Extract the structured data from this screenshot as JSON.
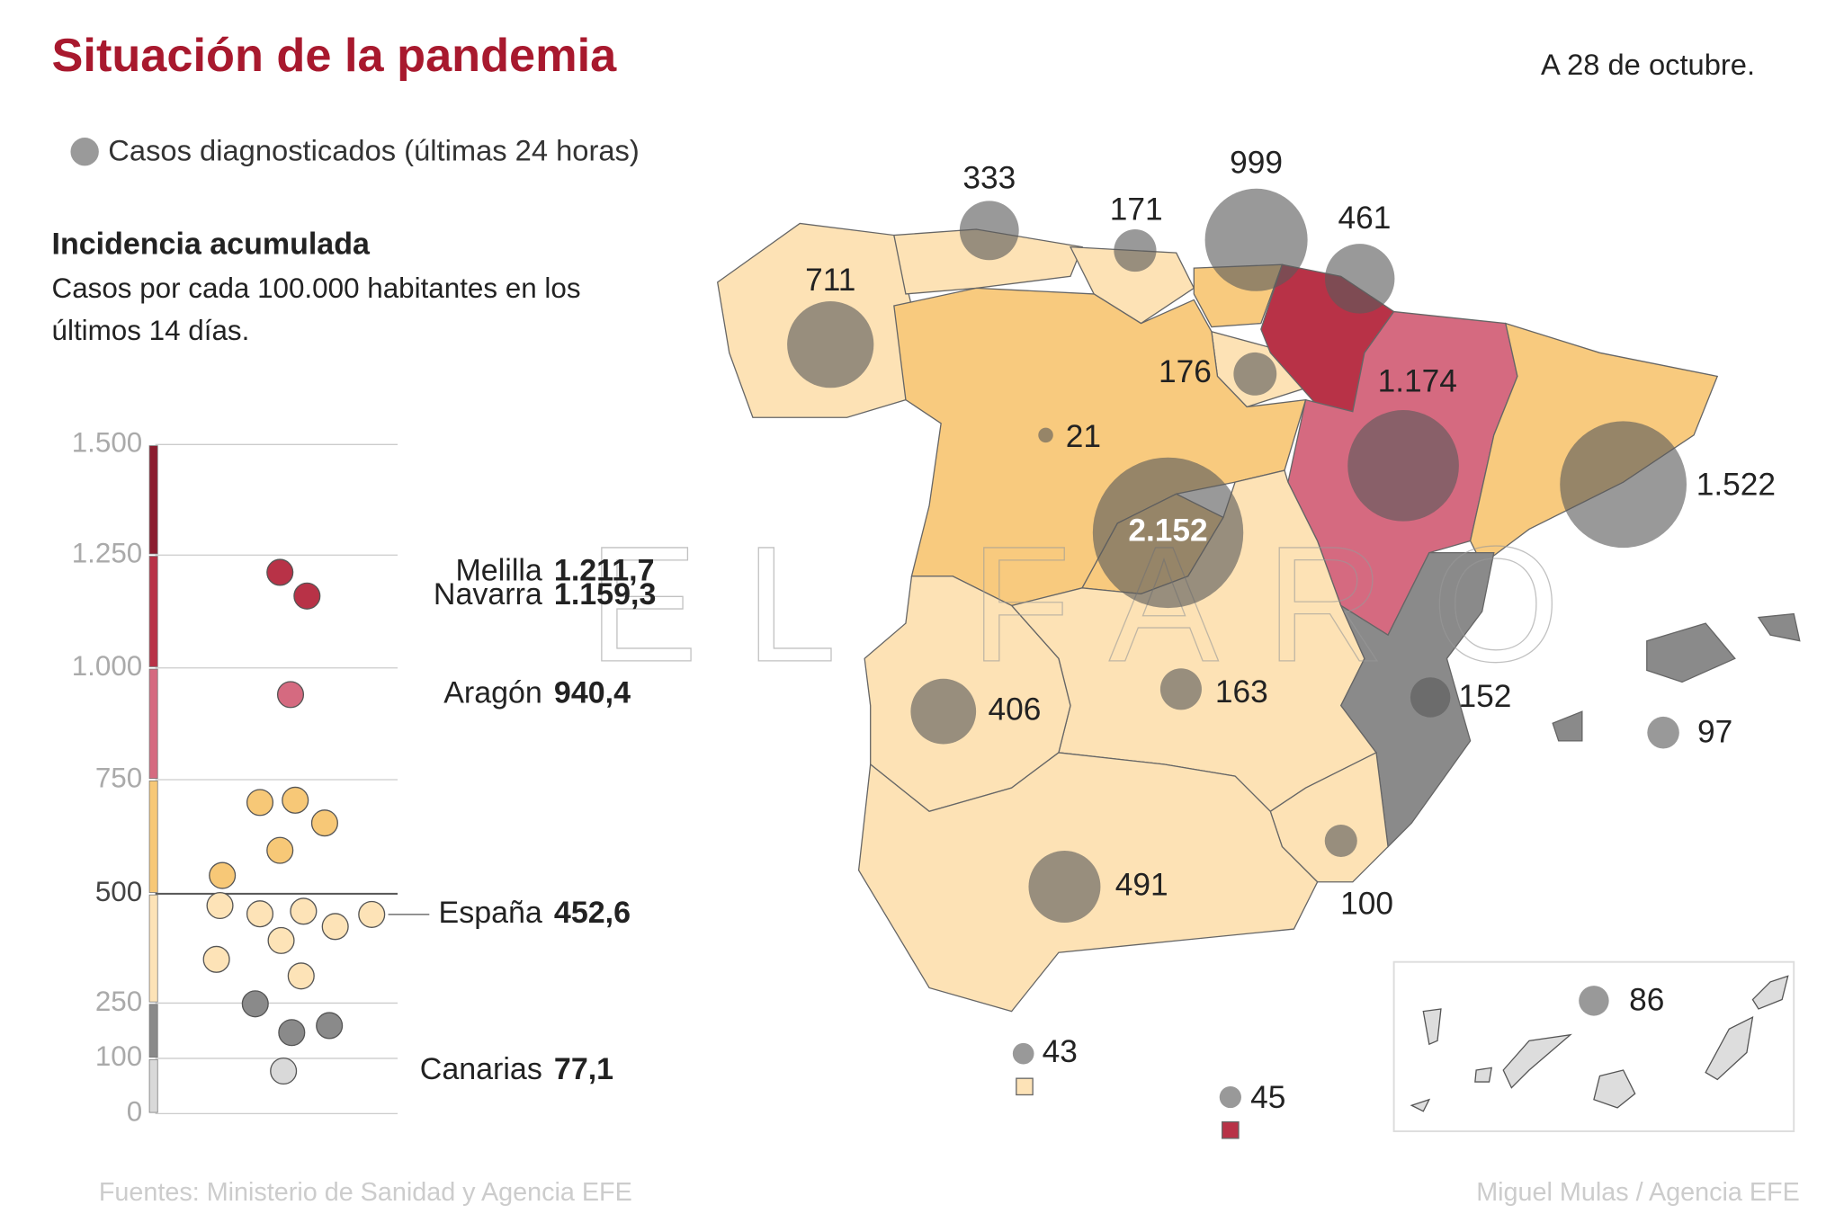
{
  "title": "Situación de la pandemia",
  "date": "A 28 de octubre.",
  "watermark": "EL FARO",
  "source": "Fuentes: Ministerio de Sanidad y Agencia EFE",
  "credit": "Miguel Mulas / Agencia EFE",
  "chart_data": [
    {
      "type": "strip",
      "title": "Incidencia acumulada",
      "subtitle": "Casos por cada 100.000 habitantes en los últimos 14 días.",
      "ylim": [
        0,
        1500
      ],
      "yticks": [
        {
          "value": 1500,
          "label": "1.500"
        },
        {
          "value": 1250,
          "label": "1.250"
        },
        {
          "value": 1000,
          "label": "1.000"
        },
        750,
        500,
        250,
        100,
        0
      ],
      "band_colors": [
        "#8b1d2f",
        "#b83247",
        "#d56a80",
        "#f7c877",
        "#fde3b7",
        "#8a8a8a",
        "#d9d9d9"
      ],
      "values": [
        1211.7,
        1159.3,
        940.4,
        700,
        705,
        655,
        595,
        540,
        473,
        454,
        460,
        425,
        452.6,
        393,
        350,
        312,
        248,
        170,
        189,
        77.1
      ],
      "labels": [
        "Melilla",
        "Navarra",
        "Aragón",
        null,
        null,
        null,
        null,
        null,
        null,
        null,
        null,
        null,
        "España",
        null,
        null,
        null,
        null,
        null,
        null,
        "Canarias"
      ],
      "value_labels": [
        "1.211,7",
        "1.159,3",
        "940,4",
        null,
        null,
        null,
        null,
        null,
        null,
        null,
        null,
        null,
        "452,6",
        null,
        null,
        null,
        null,
        null,
        null,
        "77,1"
      ]
    },
    {
      "type": "bubble",
      "legend": "Casos diagnosticados (últimas 24 horas)",
      "color": "#5a5a5a",
      "values": [
        333,
        171,
        999,
        461,
        711,
        176,
        21,
        1174,
        1522,
        2152,
        406,
        163,
        152,
        97,
        491,
        100,
        86,
        43,
        45
      ],
      "value_labels": [
        null,
        null,
        null,
        null,
        null,
        null,
        null,
        "1.174",
        "1.522",
        "2.152",
        null,
        null,
        null,
        null,
        null,
        null,
        null,
        null,
        null
      ]
    }
  ]
}
